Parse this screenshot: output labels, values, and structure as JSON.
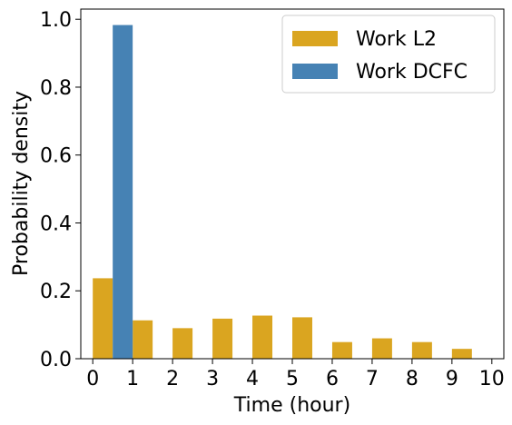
{
  "chart_data": {
    "type": "bar",
    "xlabel": "Time (hour)",
    "ylabel": "Probability density",
    "xlim": [
      -0.3,
      10.3
    ],
    "ylim": [
      0,
      1.03
    ],
    "x_ticks": [
      0,
      1,
      2,
      3,
      4,
      5,
      6,
      7,
      8,
      9,
      10
    ],
    "y_ticks": [
      0.0,
      0.2,
      0.4,
      0.6,
      0.8,
      1.0
    ],
    "y_tick_labels": [
      "0.0",
      "0.2",
      "0.4",
      "0.6",
      "0.8",
      "1.0"
    ],
    "bin_edges": [
      0,
      1,
      2,
      3,
      4,
      5,
      6,
      7,
      8,
      9,
      10
    ],
    "series": [
      {
        "name": "Work L2",
        "color": "#DAA520",
        "values": [
          0.237,
          0.113,
          0.09,
          0.118,
          0.127,
          0.122,
          0.049,
          0.06,
          0.049,
          0.029
        ]
      },
      {
        "name": "Work DCFC",
        "color": "#4682B4",
        "values": [
          0.983,
          0.001,
          0.001,
          0.001,
          0.001,
          0.001,
          0.001,
          0.001,
          0.001,
          0.001
        ]
      }
    ],
    "legend_position": "top-right",
    "grid": false
  }
}
